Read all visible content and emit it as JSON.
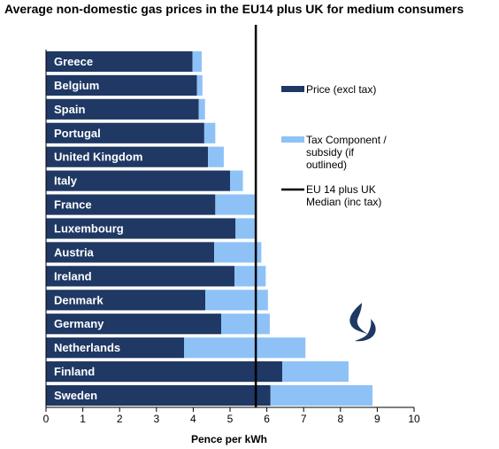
{
  "title": "Average non-domestic gas prices in the EU14 plus UK for medium consumers",
  "colors": {
    "price": "#1f3864",
    "tax": "#8ec2f7",
    "median": "#000000",
    "logo": "#1f3864"
  },
  "logo_icon": "gas-flame-icon",
  "chart_data": {
    "type": "bar",
    "orientation": "horizontal",
    "stacked": true,
    "title": "Average non-domestic gas prices in the EU14 plus UK for medium consumers",
    "xlabel": "Pence per kWh",
    "ylabel": "",
    "xlim": [
      0,
      10
    ],
    "xticks": [
      "0",
      "1",
      "2",
      "3",
      "4",
      "5",
      "6",
      "7",
      "8",
      "9",
      "10"
    ],
    "grid": false,
    "legend_position": "right",
    "categories": [
      "Greece",
      "Belgium",
      "Spain",
      "Portugal",
      "United Kingdom",
      "Italy",
      "France",
      "Luxembourg",
      "Austria",
      "Ireland",
      "Denmark",
      "Germany",
      "Netherlands",
      "Finland",
      "Sweden"
    ],
    "series": [
      {
        "name": "Price (excl tax)",
        "values": [
          3.98,
          4.1,
          4.15,
          4.3,
          4.4,
          5.0,
          4.6,
          5.15,
          4.57,
          5.12,
          4.33,
          4.76,
          3.75,
          6.42,
          6.1
        ]
      },
      {
        "name": "Tax Component / subsidy (if outlined)",
        "values": [
          0.25,
          0.15,
          0.17,
          0.3,
          0.43,
          0.35,
          1.1,
          0.55,
          1.28,
          0.85,
          1.7,
          1.32,
          3.3,
          1.8,
          2.77
        ]
      }
    ],
    "median": {
      "name": "EU 14 plus UK Median (inc tax)",
      "value": 5.7
    },
    "legend": [
      {
        "label_lines": [
          "Price (excl tax)"
        ]
      },
      {
        "label_lines": [
          "Tax Component /",
          "subsidy (if",
          "outlined)"
        ]
      },
      {
        "label_lines": [
          "EU 14 plus UK",
          "Median (inc tax)"
        ]
      }
    ]
  }
}
